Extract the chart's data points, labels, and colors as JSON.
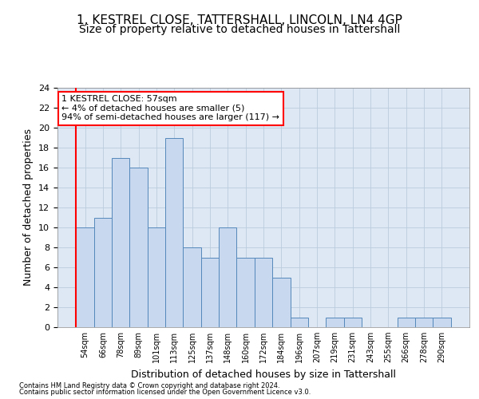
{
  "title1": "1, KESTREL CLOSE, TATTERSHALL, LINCOLN, LN4 4GP",
  "title2": "Size of property relative to detached houses in Tattershall",
  "xlabel": "Distribution of detached houses by size in Tattershall",
  "ylabel": "Number of detached properties",
  "bar_labels": [
    "54sqm",
    "66sqm",
    "78sqm",
    "89sqm",
    "101sqm",
    "113sqm",
    "125sqm",
    "137sqm",
    "148sqm",
    "160sqm",
    "172sqm",
    "184sqm",
    "196sqm",
    "207sqm",
    "219sqm",
    "231sqm",
    "243sqm",
    "255sqm",
    "266sqm",
    "278sqm",
    "290sqm"
  ],
  "bar_values": [
    10,
    11,
    17,
    16,
    10,
    19,
    8,
    7,
    10,
    7,
    7,
    5,
    1,
    0,
    1,
    1,
    0,
    0,
    1,
    1,
    1
  ],
  "bar_color": "#c8d8ee",
  "bar_edge_color": "#5588bb",
  "annotation_line1": "1 KESTREL CLOSE: 57sqm",
  "annotation_line2": "← 4% of detached houses are smaller (5)",
  "annotation_line3": "94% of semi-detached houses are larger (117) →",
  "annotation_box_color": "white",
  "annotation_box_edge_color": "red",
  "ylim": [
    0,
    24
  ],
  "yticks": [
    0,
    2,
    4,
    6,
    8,
    10,
    12,
    14,
    16,
    18,
    20,
    22,
    24
  ],
  "grid_color": "#bbccdd",
  "plot_bg_color": "#dde8f4",
  "marker_line_color": "red",
  "title1_fontsize": 11,
  "title2_fontsize": 10,
  "xlabel_fontsize": 9,
  "ylabel_fontsize": 9,
  "footer1": "Contains HM Land Registry data © Crown copyright and database right 2024.",
  "footer2": "Contains public sector information licensed under the Open Government Licence v3.0."
}
